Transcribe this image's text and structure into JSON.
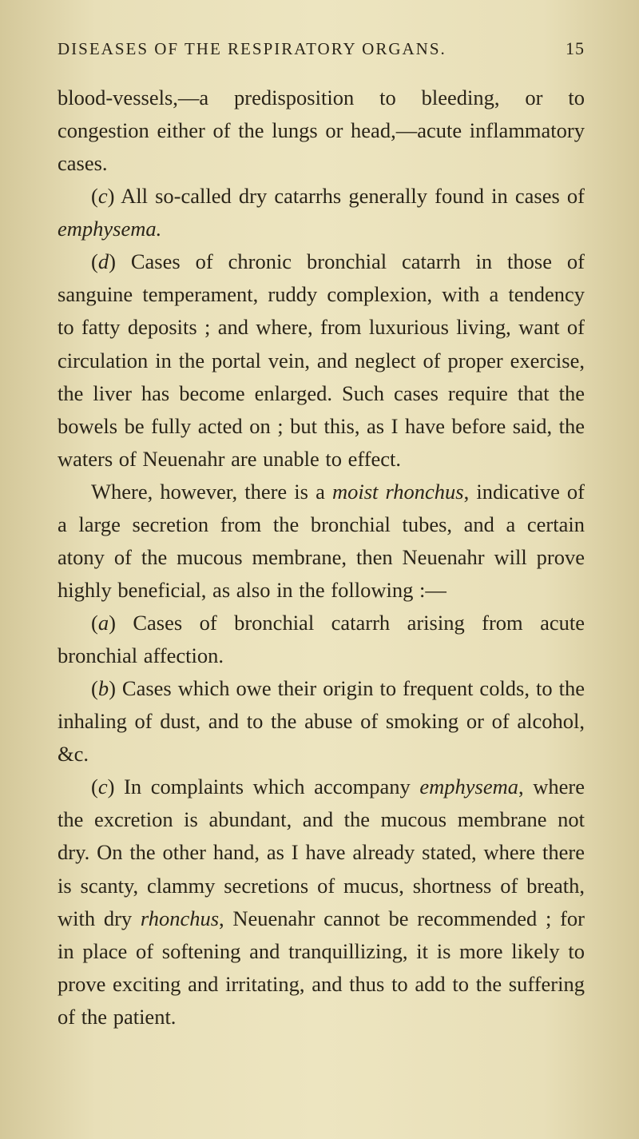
{
  "header": {
    "title": "DISEASES OF THE RESPIRATORY ORGANS.",
    "page_number": "15"
  },
  "paragraphs": {
    "p1": "blood-vessels,—a predisposition to bleeding, or to congestion either of the lungs or head,—acute inflammatory cases.",
    "p2_a": "(",
    "p2_b": "c",
    "p2_c": ") All so-called dry catarrhs generally found in cases of ",
    "p2_d": "emphysema.",
    "p3_a": "(",
    "p3_b": "d",
    "p3_c": ") Cases of chronic bronchial catarrh in those of sanguine temperament, ruddy complexion, with a tendency to fatty deposits ; and where, from luxurious living, want of circulation in the portal vein, and neglect of proper exercise, the liver has become enlarged. Such cases require that the bowels be fully acted on ; but this, as I have before said, the waters of Neuenahr are unable to effect.",
    "p4_a": "Where, however, there is a ",
    "p4_b": "moist rhonchus",
    "p4_c": ", indicative of a large secretion from the bronchial tubes, and a certain atony of the mucous membrane, then Neuenahr will prove highly beneficial, as also in the following :—",
    "p5_a": "(",
    "p5_b": "a",
    "p5_c": ") Cases of bronchial catarrh arising from acute bronchial affection.",
    "p6_a": "(",
    "p6_b": "b",
    "p6_c": ") Cases which owe their origin to frequent colds, to the inhaling of dust, and to the abuse of smoking or of alcohol, &c.",
    "p7_a": "(",
    "p7_b": "c",
    "p7_c": ") In complaints which accompany ",
    "p7_d": "emphysema",
    "p7_e": ", where the excretion is abundant, and the mucous membrane not dry. On the other hand, as I have already stated, where there is scanty, clammy secretions of mucus, shortness of breath, with dry ",
    "p7_f": "rhonchus",
    "p7_g": ", Neuenahr cannot be recommended ; for in place of softening and tranquillizing, it is more likely to prove exciting and irritating, and thus to add to the suffering of the patient."
  },
  "style": {
    "background_gradient_left": "#d4c89a",
    "background_gradient_center": "#ede5c0",
    "text_color": "#2a2418",
    "body_fontsize": 26.5,
    "header_fontsize": 21,
    "line_height": 1.55
  }
}
